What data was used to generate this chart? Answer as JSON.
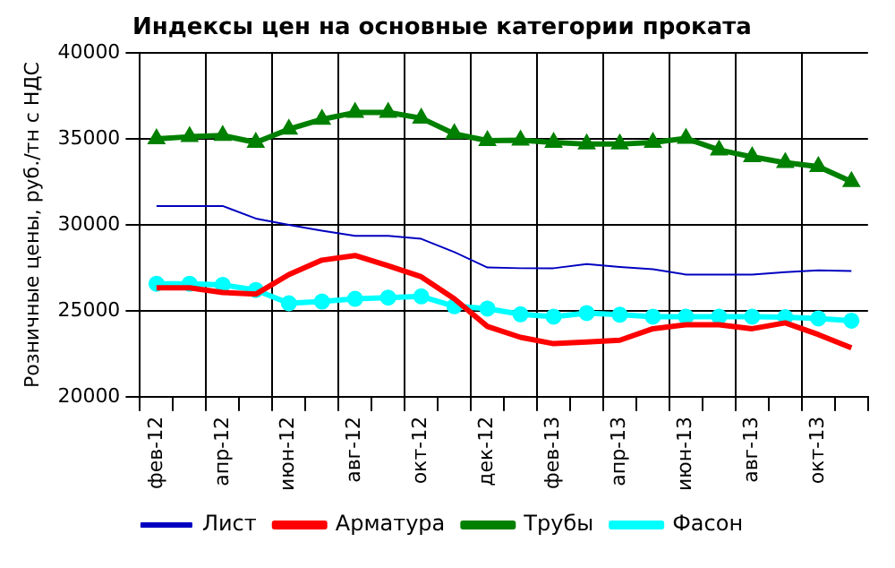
{
  "chart_data": {
    "type": "line",
    "title": "Индексы цен на основные категории проката",
    "ylabel": "Розничные цены, руб./тн с НДС",
    "categories": [
      "фев-12",
      null,
      "апр-12",
      null,
      "июн-12",
      null,
      "авг-12",
      null,
      "окт-12",
      null,
      "дек-12",
      null,
      "фев-13",
      null,
      "апр-13",
      null,
      "июн-13",
      null,
      "авг-13",
      null,
      "окт-13",
      null
    ],
    "series": [
      {
        "name": "Лист",
        "color": "#0000c0",
        "marker": "none",
        "values": [
          31100,
          31100,
          31100,
          30370,
          30000,
          29660,
          29360,
          29360,
          29190,
          28420,
          27520,
          27480,
          27480,
          27720,
          27550,
          27420,
          27110,
          27110,
          27110,
          27250,
          27350,
          27320
        ]
      },
      {
        "name": "Арматура",
        "color": "#ff0000",
        "marker": "none",
        "values": [
          26340,
          26340,
          26070,
          25970,
          27110,
          27950,
          28220,
          27620,
          26980,
          25700,
          24090,
          23460,
          23090,
          23190,
          23290,
          23960,
          24190,
          24190,
          23960,
          24300,
          23620,
          22850
        ]
      },
      {
        "name": "Трубы",
        "color": "#008000",
        "marker": "triangle",
        "values": [
          35000,
          35130,
          35200,
          34800,
          35570,
          36140,
          36540,
          36540,
          36210,
          35300,
          34900,
          34930,
          34800,
          34700,
          34700,
          34800,
          35030,
          34360,
          33960,
          33620,
          33390,
          32520
        ]
      },
      {
        "name": "Фасон",
        "color": "#00ffff",
        "marker": "circle",
        "values": [
          26580,
          26580,
          26510,
          26210,
          25440,
          25540,
          25700,
          25770,
          25840,
          25270,
          25130,
          24800,
          24660,
          24870,
          24770,
          24660,
          24660,
          24660,
          24660,
          24630,
          24560,
          24430
        ]
      }
    ],
    "ylim": [
      20000,
      40000
    ],
    "yticks": [
      20000,
      25000,
      30000,
      35000,
      40000
    ],
    "grid": true,
    "legend": "bottom"
  }
}
